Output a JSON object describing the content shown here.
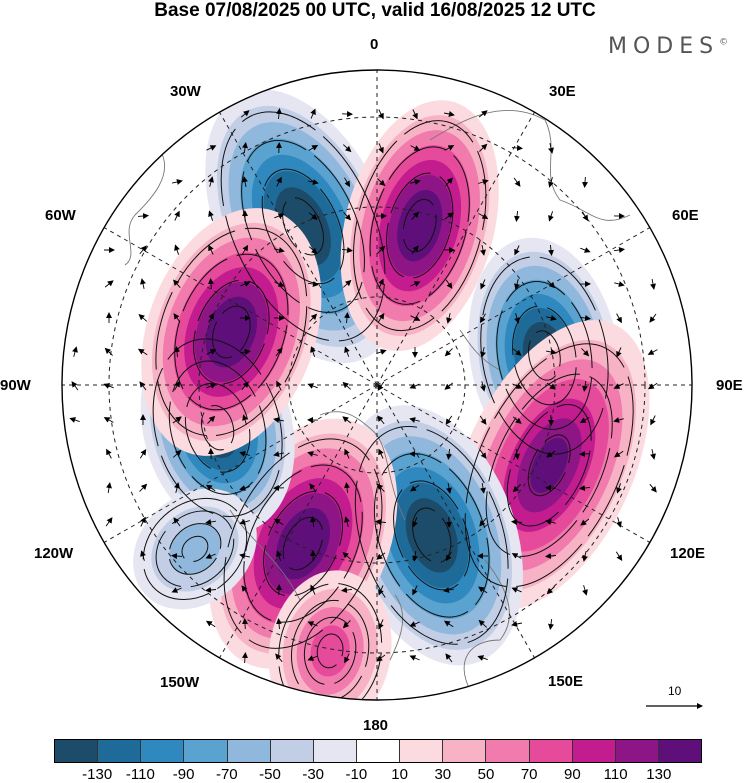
{
  "title": "Base 07/08/2025 00 UTC, valid 16/08/2025 12 UTC",
  "brand": "MODES",
  "brand_mark": "©",
  "longitude_labels": {
    "n": "0",
    "ne30": "30E",
    "ne60": "60E",
    "e": "90E",
    "se120": "120E",
    "se150": "150E",
    "s": "180",
    "sw150": "150W",
    "sw120": "120W",
    "w": "90W",
    "nw60": "60W",
    "nw30": "30W"
  },
  "reference_vector_label": "10",
  "colorbar": {
    "colors": [
      "#1d4c6a",
      "#1e6b99",
      "#2f88be",
      "#5aa2cf",
      "#90b7dc",
      "#c2cee5",
      "#e6e6f2",
      "#ffffff",
      "#fbdbe0",
      "#f7b3c5",
      "#f07bac",
      "#e64a9a",
      "#c21c8f",
      "#8e1585",
      "#5e0f7a"
    ],
    "tick_labels": [
      "-130",
      "-110",
      "-90",
      "-70",
      "-50",
      "-30",
      "-10",
      "10",
      "30",
      "50",
      "70",
      "90",
      "110",
      "130"
    ]
  },
  "anomaly_centers": [
    {
      "sign": "negative",
      "bearing_deg": 335,
      "strength": 140
    },
    {
      "sign": "positive",
      "bearing_deg": 15,
      "strength": 140
    },
    {
      "sign": "negative",
      "bearing_deg": 80,
      "strength": 140
    },
    {
      "sign": "positive",
      "bearing_deg": 115,
      "strength": 125
    },
    {
      "sign": "negative",
      "bearing_deg": 160,
      "strength": 140
    },
    {
      "sign": "positive",
      "bearing_deg": 205,
      "strength": 140
    },
    {
      "sign": "negative",
      "bearing_deg": 255,
      "strength": 140
    },
    {
      "sign": "positive",
      "bearing_deg": 290,
      "strength": 140
    },
    {
      "sign": "negative",
      "bearing_deg": 228,
      "strength": 50
    },
    {
      "sign": "positive",
      "bearing_deg": 190,
      "strength": 60
    }
  ]
}
